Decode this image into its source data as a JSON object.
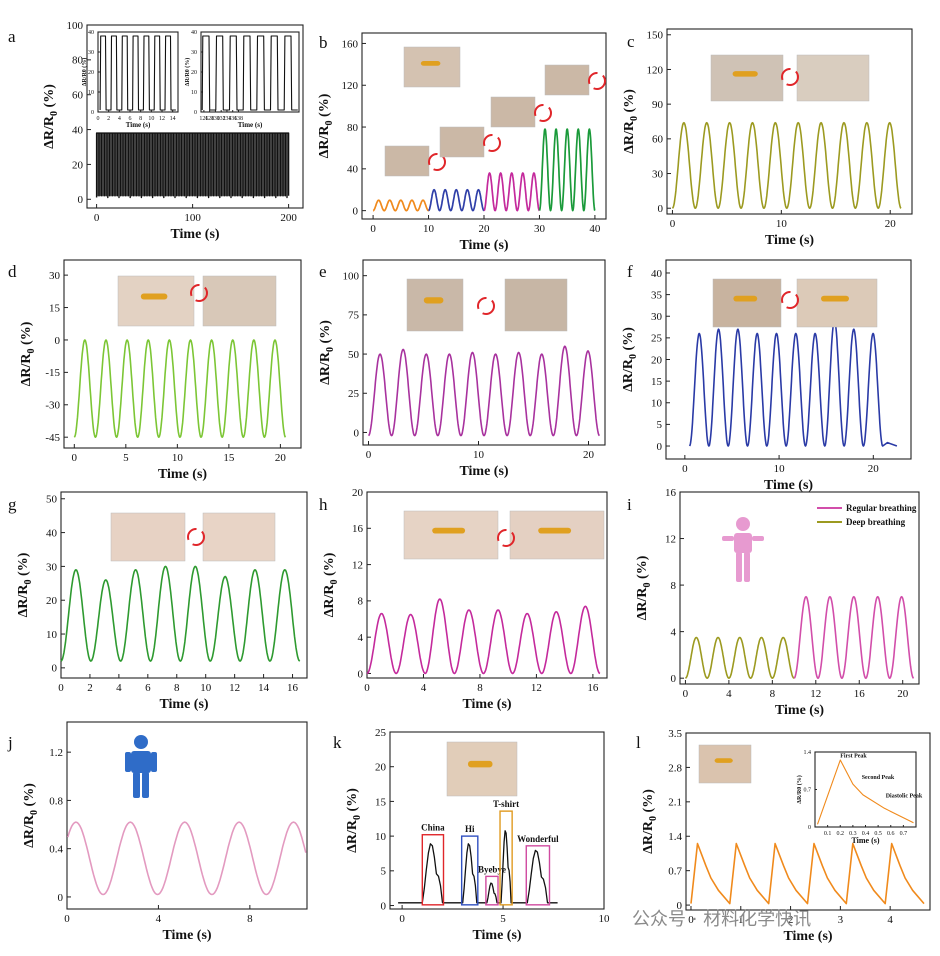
{
  "panels": [
    {
      "label": "a",
      "yLabelMain": "ΔR/R",
      "yLabelSub": "0",
      "yLabelUnit": " (%)",
      "xlabel": "Time (s)"
    },
    {
      "label": "b",
      "yLabelMain": "ΔR/R",
      "yLabelSub": "0",
      "yLabelUnit": " (%)",
      "xlabel": "Time (s)"
    },
    {
      "label": "c",
      "yLabelMain": "ΔR/R",
      "yLabelSub": "0",
      "yLabelUnit": " (%)",
      "xlabel": "Time (s)"
    },
    {
      "label": "d",
      "yLabelMain": "ΔR/R",
      "yLabelSub": "0",
      "yLabelUnit": " (%)",
      "xlabel": "Time (s)"
    },
    {
      "label": "e",
      "yLabelMain": "ΔR/R",
      "yLabelSub": "0",
      "yLabelUnit": " (%)",
      "xlabel": "Time (s)"
    },
    {
      "label": "f",
      "yLabelMain": "ΔR/R",
      "yLabelSub": "0",
      "yLabelUnit": " (%)",
      "xlabel": "Time (s)"
    },
    {
      "label": "g",
      "yLabelMain": "ΔR/R",
      "yLabelSub": "0",
      "yLabelUnit": " (%)",
      "xlabel": "Time (s)"
    },
    {
      "label": "h",
      "yLabelMain": "ΔR/R",
      "yLabelSub": "0",
      "yLabelUnit": " (%)",
      "xlabel": "Time (s)"
    },
    {
      "label": "i",
      "yLabelMain": "ΔR/R",
      "yLabelSub": "0",
      "yLabelUnit": " (%)",
      "xlabel": "Time (s)"
    },
    {
      "label": "j",
      "yLabelMain": "ΔR/R",
      "yLabelSub": "0",
      "yLabelUnit": " (%)",
      "xlabel": "Time (s)"
    },
    {
      "label": "k",
      "yLabelMain": "ΔR/R",
      "yLabelSub": "0",
      "yLabelUnit": " (%)",
      "xlabel": "Time (s)"
    },
    {
      "label": "l",
      "yLabelMain": "ΔR/R",
      "yLabelSub": "0",
      "yLabelUnit": " (%)",
      "xlabel": "Time (s)"
    }
  ],
  "inset_texts": {
    "a_inset_ylabel": "ΔR/R0 (%)",
    "a_inset_xlabel": "Time (s)",
    "l_inset_ylabel": "ΔR/R0 (%)",
    "l_inset_xlabel": "Time (s)",
    "l_first_peak": "First Peak",
    "l_second_peak": "Second Peak",
    "l_diastolic_peak": "Diastolic Peak"
  },
  "legend_i": {
    "regular": "Regular breathing",
    "deep": "Deep breathing"
  },
  "word_labels_k": [
    "China",
    "Hi",
    "Byebye",
    "T-shirt",
    "Wonderful"
  ],
  "watermark": "公众号 · 材料化学快讯",
  "colors": {
    "orange": "#f08a1c",
    "blue": "#2f3fa8",
    "magenta": "#c42a9c",
    "green": "#1a9a3a",
    "olive": "#9c9a20",
    "lightgreen": "#7cc635",
    "purple": "#a8329e",
    "navy": "#2a3aa6",
    "darkgreen": "#2e9a30",
    "pink": "#d24eaa",
    "rose": "#e39ac0",
    "black": "#111111"
  },
  "chart_data": [
    {
      "panel": "a",
      "type": "line",
      "xlim": [
        -10,
        215
      ],
      "ylim": [
        -5,
        100
      ],
      "xticks": [
        0,
        100,
        200
      ],
      "yticks": [
        0,
        20,
        40,
        60,
        80,
        100
      ],
      "series": [
        {
          "color": "black",
          "values_description": "dense square-wave cycling between ~2 and ~38",
          "x_range": [
            0,
            200
          ],
          "low": 2,
          "high": 38
        }
      ],
      "insets": [
        {
          "xlim": [
            0,
            15
          ],
          "ylim": [
            0,
            40
          ],
          "xticks": [
            0,
            2,
            4,
            6,
            8,
            10,
            12,
            14
          ],
          "yticks": [
            0,
            10,
            20,
            30,
            40
          ],
          "periods": 7
        },
        {
          "xlim": [
            125,
            159
          ],
          "ylim": [
            0,
            40
          ],
          "xticks": [
            126,
            128,
            130,
            132,
            134,
            136,
            138
          ],
          "yticks": [
            0,
            10,
            20,
            30,
            40
          ],
          "periods": 7
        }
      ]
    },
    {
      "panel": "b",
      "type": "line",
      "xlim": [
        -2,
        42
      ],
      "ylim": [
        -8,
        170
      ],
      "xticks": [
        0,
        10,
        20,
        30,
        40
      ],
      "yticks": [
        0,
        40,
        80,
        120,
        160
      ],
      "series": [
        {
          "color": "orange",
          "x_range": [
            0,
            10
          ],
          "low": 0,
          "high": 10,
          "cycles": 5
        },
        {
          "color": "blue",
          "x_range": [
            10,
            20
          ],
          "low": 0,
          "high": 20,
          "cycles": 5
        },
        {
          "color": "magenta",
          "x_range": [
            20,
            30
          ],
          "low": 0,
          "high": 36,
          "cycles": 5
        },
        {
          "color": "green",
          "x_range": [
            30,
            40
          ],
          "low": 0,
          "high": 78,
          "cycles": 5
        }
      ]
    },
    {
      "panel": "c",
      "type": "line",
      "xlim": [
        -0.5,
        22
      ],
      "ylim": [
        -5,
        155
      ],
      "xticks": [
        0,
        10,
        20
      ],
      "yticks": [
        0,
        30,
        60,
        90,
        120,
        150
      ],
      "series": [
        {
          "color": "olive",
          "x_range": [
            0,
            21
          ],
          "low": 0,
          "high": 74,
          "cycles": 10
        }
      ]
    },
    {
      "panel": "d",
      "type": "line",
      "xlim": [
        -1,
        22
      ],
      "ylim": [
        -50,
        37
      ],
      "xticks": [
        0,
        5,
        10,
        15,
        20
      ],
      "yticks": [
        -45,
        -30,
        -15,
        0,
        15,
        30
      ],
      "series": [
        {
          "color": "lightgreen",
          "x_range": [
            0,
            20.5
          ],
          "low": -45,
          "high": 0,
          "cycles": 10
        }
      ]
    },
    {
      "panel": "e",
      "type": "line",
      "xlim": [
        -0.5,
        21.5
      ],
      "ylim": [
        -8,
        110
      ],
      "xticks": [
        0,
        10,
        20
      ],
      "yticks": [
        0,
        25,
        50,
        75,
        100
      ],
      "series": [
        {
          "color": "purple",
          "x_range": [
            0,
            21
          ],
          "low": -2,
          "high": 53,
          "cycles": 10,
          "peaks": [
            50,
            53,
            50,
            50,
            51,
            50,
            51,
            50,
            55,
            52
          ]
        }
      ]
    },
    {
      "panel": "f",
      "type": "line",
      "xlim": [
        -2,
        24
      ],
      "ylim": [
        -3,
        43
      ],
      "xticks": [
        0,
        10,
        20
      ],
      "yticks": [
        0,
        5,
        10,
        15,
        20,
        25,
        30,
        35,
        40
      ],
      "series": [
        {
          "color": "navy",
          "x_range": [
            0,
            23
          ],
          "low": 0,
          "high": 27,
          "cycles": 10,
          "peaks": [
            26,
            27,
            27,
            26,
            26,
            26,
            26,
            29,
            27,
            26
          ]
        }
      ]
    },
    {
      "panel": "g",
      "type": "line",
      "xlim": [
        0,
        17
      ],
      "ylim": [
        -3,
        52
      ],
      "xticks": [
        0,
        2,
        4,
        6,
        8,
        10,
        12,
        14,
        16
      ],
      "yticks": [
        0,
        10,
        20,
        30,
        40,
        50
      ],
      "series": [
        {
          "color": "darkgreen",
          "x_range": [
            0,
            16.5
          ],
          "low": 2,
          "high": 30,
          "cycles": 8,
          "peaks": [
            29,
            26,
            29,
            30,
            30,
            27,
            29,
            29
          ]
        }
      ]
    },
    {
      "panel": "h",
      "type": "line",
      "xlim": [
        0,
        17
      ],
      "ylim": [
        -0.5,
        20
      ],
      "xticks": [
        0,
        4,
        8,
        12,
        16
      ],
      "yticks": [
        0,
        4,
        8,
        12,
        16,
        20
      ],
      "series": [
        {
          "color": "magenta",
          "x_range": [
            0,
            16.5
          ],
          "low": 0,
          "high": 7,
          "cycles": 8,
          "peaks": [
            6.6,
            6.5,
            8.2,
            7.0,
            7.0,
            6.6,
            6.8,
            7.4
          ]
        }
      ]
    },
    {
      "panel": "i",
      "type": "line",
      "xlim": [
        -0.5,
        21.5
      ],
      "ylim": [
        -0.5,
        16
      ],
      "xticks": [
        0,
        4,
        8,
        12,
        16,
        20
      ],
      "yticks": [
        0,
        4,
        8,
        12,
        16
      ],
      "series": [
        {
          "name": "Deep breathing",
          "color": "olive",
          "x_range": [
            0,
            10
          ],
          "low": 0,
          "high": 3.5,
          "cycles": 5
        },
        {
          "name": "Regular breathing",
          "color": "pink",
          "x_range": [
            10,
            21
          ],
          "low": 0,
          "high": 7,
          "cycles": 5
        }
      ],
      "legend": "top-right"
    },
    {
      "panel": "j",
      "type": "line",
      "xlim": [
        0,
        10.5
      ],
      "ylim": [
        -0.1,
        1.45
      ],
      "xticks": [
        0,
        4,
        8
      ],
      "yticks": [
        0.0,
        0.4,
        0.8,
        1.2
      ],
      "series": [
        {
          "color": "rose",
          "x_range": [
            0,
            10.5
          ],
          "low": 0.02,
          "high": 0.62,
          "cycles": 5
        }
      ]
    },
    {
      "panel": "k",
      "type": "line",
      "xlim": [
        -0.6,
        10
      ],
      "ylim": [
        -0.5,
        25
      ],
      "xticks": [
        0,
        5,
        10
      ],
      "yticks": [
        0,
        5,
        10,
        15,
        20,
        25
      ],
      "series": [
        {
          "color": "black",
          "values_description": "baseline ~0.4 with bursts: China ~9 (x 1.0-2.0), Hi ~9 (x 3.0-3.7), Byebye ~3 (x 4.2-4.7), T-shirt ~11 (x 4.9-5.4), Wonderful ~8 (x 6.2-7.2)"
        }
      ]
    },
    {
      "panel": "l",
      "type": "line",
      "xlim": [
        -0.1,
        4.8
      ],
      "ylim": [
        -0.1,
        3.5
      ],
      "xticks": [
        0,
        1,
        2,
        3,
        4
      ],
      "yticks": [
        0.0,
        0.7,
        1.4,
        2.1,
        2.8,
        3.5
      ],
      "series": [
        {
          "color": "orange",
          "x_range": [
            0,
            4.8
          ],
          "low": 0,
          "high": 1.25,
          "cycles": 6
        }
      ],
      "inset": {
        "xlim": [
          0,
          0.8
        ],
        "ylim": [
          0,
          1.4
        ],
        "xticks": [
          0.1,
          0.2,
          0.3,
          0.4,
          0.5,
          0.6,
          0.7
        ],
        "yticks": [
          0.0,
          0.7,
          1.4
        ]
      }
    }
  ]
}
